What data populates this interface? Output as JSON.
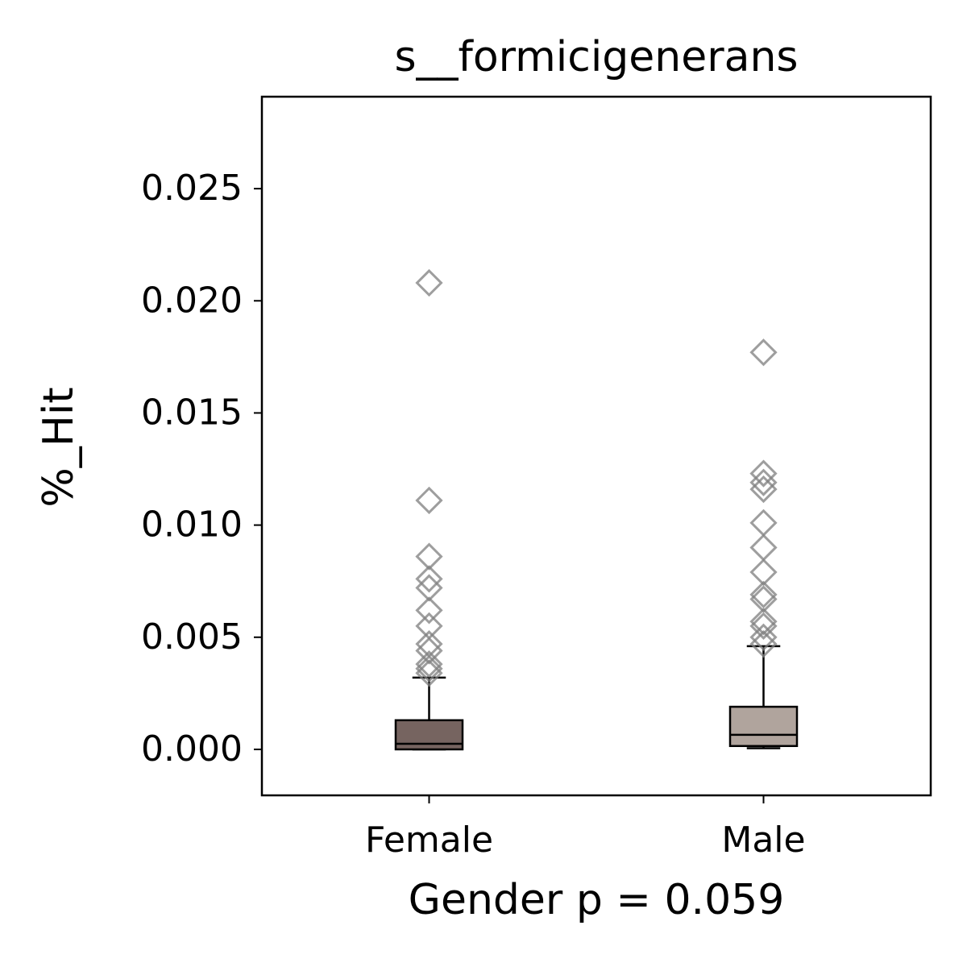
{
  "chart_data": {
    "type": "box",
    "title": "s__formicigenerans",
    "x_label": "Gender p = 0.059",
    "y_label": "%_Hit",
    "categories": [
      "Female",
      "Male"
    ],
    "boxes": [
      {
        "color": "#766460",
        "whislo": 0,
        "q1": 0,
        "median": 0.00025,
        "q3": 0.0013,
        "whishi": 0.0032,
        "fliers": [
          0.0208,
          0.0111,
          0.0086,
          0.0076,
          0.0072,
          0.0062,
          0.0055,
          0.0047,
          0.0044,
          0.0038,
          0.0036,
          0.0034
        ]
      },
      {
        "color": "#b0a49d",
        "whislo": 5e-05,
        "q1": 0.00015,
        "median": 0.00065,
        "q3": 0.0019,
        "whishi": 0.0046,
        "fliers": [
          0.0177,
          0.0123,
          0.0119,
          0.0116,
          0.0101,
          0.009,
          0.0079,
          0.0069,
          0.0067,
          0.0057,
          0.0055,
          0.005,
          0.0047
        ]
      }
    ],
    "flier_color": "#808080",
    "ylim": [
      -0.00205,
      0.0291
    ],
    "yticks": [
      {
        "value": 0,
        "label": "0.000"
      },
      {
        "value": 0.005,
        "label": "0.005"
      },
      {
        "value": 0.01,
        "label": "0.010"
      },
      {
        "value": 0.015,
        "label": "0.015"
      },
      {
        "value": 0.02,
        "label": "0.020"
      },
      {
        "value": 0.025,
        "label": "0.025"
      }
    ]
  }
}
